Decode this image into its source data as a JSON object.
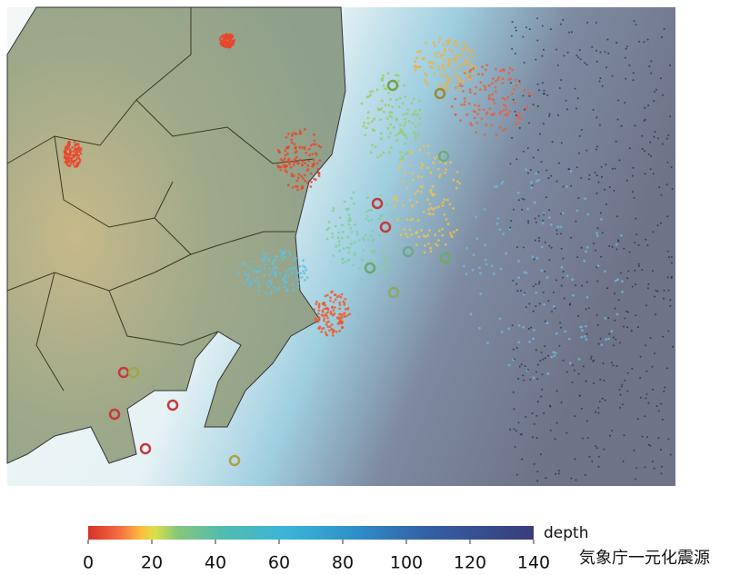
{
  "colorbar": {
    "label": "depth",
    "lim": [
      0,
      140
    ],
    "ticks": [
      0,
      20,
      40,
      60,
      80,
      100,
      120,
      140
    ]
  },
  "credit": "気象庁一元化震源"
}
